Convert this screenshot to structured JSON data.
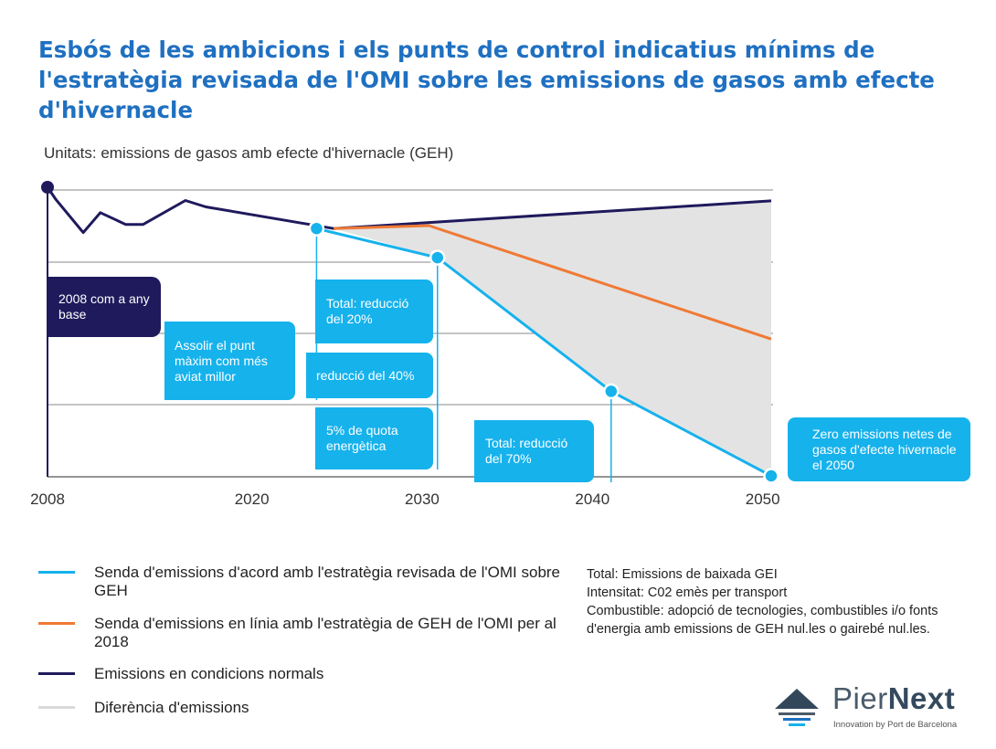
{
  "title": "Esbós de les ambicions i els punts de control indicatius mínims de l'estratègia revisada de l'OMI sobre les emissions de gasos amb efecte d'hivernacle",
  "units": "Unitats: emissions de gasos amb efecte d'hivernacle (GEH)",
  "colors": {
    "title": "#1f70c1",
    "cyan": "#16b2ec",
    "orange": "#ef7a36",
    "navy": "#1f1a5c",
    "gap": "#e3e3e3"
  },
  "chart_data": {
    "type": "line",
    "title": "Esbós de les ambicions i els punts de control indicatius mínims de l'estratègia revisada de l'OMI sobre les emissions de gasos amb efecte d'hivernacle",
    "ylabel": "Unitats: emissions de gasos amb efecte d'hivernacle (GEH)",
    "x_ticks": [
      "2008",
      "2020",
      "2030",
      "2040",
      "2050"
    ],
    "xlim": [
      2008,
      2050.5
    ],
    "ylim": [
      0,
      100
    ],
    "grid": "horizontal",
    "series": [
      {
        "name": "Emissions en condicions normals",
        "color": "#1f1a5c",
        "x": [
          2008,
          2008.5,
          2010.1,
          2011.1,
          2012.6,
          2013.6,
          2016.1,
          2017.3,
          2024.8,
          2050.5
        ],
        "y": [
          100,
          95.7,
          84.3,
          91.2,
          87.1,
          87.1,
          95.4,
          93.2,
          85.7,
          95.3
        ]
      },
      {
        "name": "Senda d'emissions en línia amb l'estratègia de GEH de l'OMI per al 2018",
        "color": "#ef7a36",
        "x": [
          2024.8,
          2030.4,
          2050.5
        ],
        "y": [
          85.7,
          86.7,
          47.4
        ]
      },
      {
        "name": "Senda d'emissions d'acord amb l'estratègia revisada de l'OMI sobre GEH",
        "color": "#16b2ec",
        "x": [
          2023.8,
          2030.9,
          2041.1,
          2050.5
        ],
        "y": [
          85.7,
          75.6,
          29.3,
          0
        ]
      }
    ],
    "area": {
      "name": "Diferència d'emissions",
      "color": "#e3e3e3"
    },
    "annotations": [
      "2008 com a any base",
      "Assolir el punt màxim com més aviat millor",
      "Total: reducció del 20%",
      "reducció del 40%",
      "5% de quota energètica",
      "Total: reducció del 70%",
      "Zero emissions netes de gasos d'efecte hivernacle el 2050"
    ]
  },
  "legend": [
    {
      "label": "Senda d'emissions d'acord amb l'estratègia revisada de l'OMI sobre GEH",
      "color": "#16b2ec"
    },
    {
      "label": "Senda d'emissions en línia amb l'estratègia de GEH de l'OMI per al 2018",
      "color": "#ef7a36"
    },
    {
      "label": "Emissions en condicions normals",
      "color": "#1f1a5c"
    },
    {
      "label": "Diferència d'emissions",
      "color": "#d9d9d9"
    }
  ],
  "notes": [
    "Total: Emissions de baixada GEI",
    "Intensitat: C02 emès per transport",
    "Combustible: adopció de tecnologies, combustibles i/o fonts",
    "d'energia amb emissions de GEH nul.les o gairebé nul.les."
  ],
  "logo": {
    "name_light": "Pier",
    "name_bold": "Next",
    "tagline": "Innovation by Port de Barcelona"
  }
}
